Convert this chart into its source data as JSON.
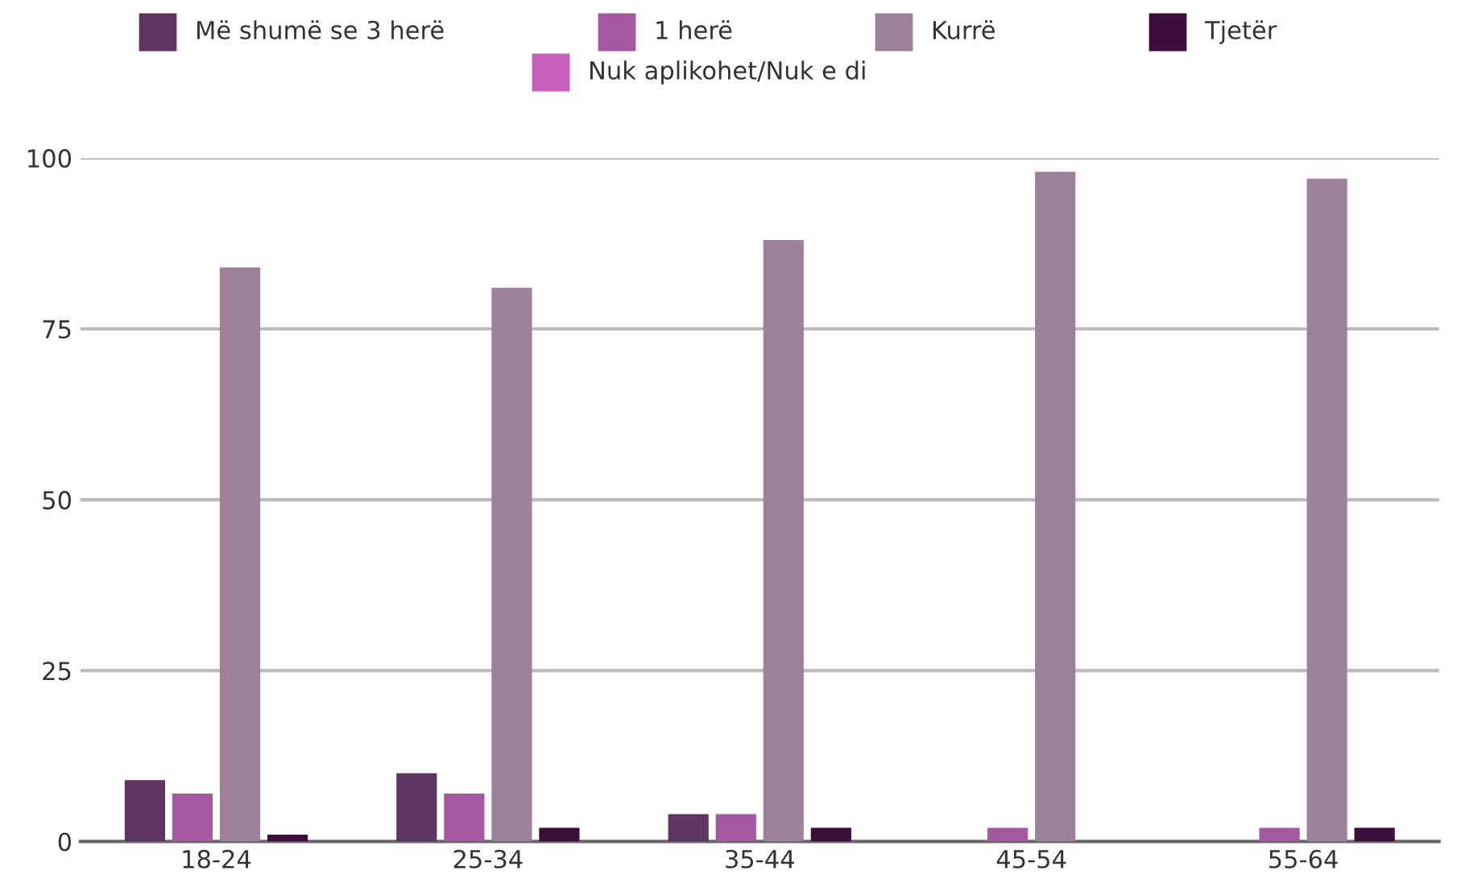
{
  "chart_data": {
    "type": "bar",
    "categories": [
      "18-24",
      "25-34",
      "35-44",
      "45-54",
      "55-64"
    ],
    "series": [
      {
        "name": "Më shumë se 3 herë",
        "color": "#5e3461",
        "values": [
          9,
          10,
          4,
          0,
          0
        ]
      },
      {
        "name": "1 herë",
        "color": "#a3589f",
        "values": [
          7,
          7,
          4,
          2,
          2
        ]
      },
      {
        "name": "Kurrë",
        "color": "#9c8199",
        "values": [
          84,
          81,
          88,
          98,
          97
        ]
      },
      {
        "name": "Tjetër",
        "color": "#3d0d3b",
        "values": [
          1,
          2,
          2,
          0,
          2
        ]
      },
      {
        "name": "Nuk aplikohet/Nuk e di",
        "color": "#c75fbd",
        "values": [
          null,
          null,
          null,
          null,
          null
        ]
      }
    ],
    "ylim": [
      0,
      100
    ],
    "yticks": [
      0,
      25,
      50,
      75,
      100
    ],
    "grid": "y",
    "legend": "top"
  }
}
